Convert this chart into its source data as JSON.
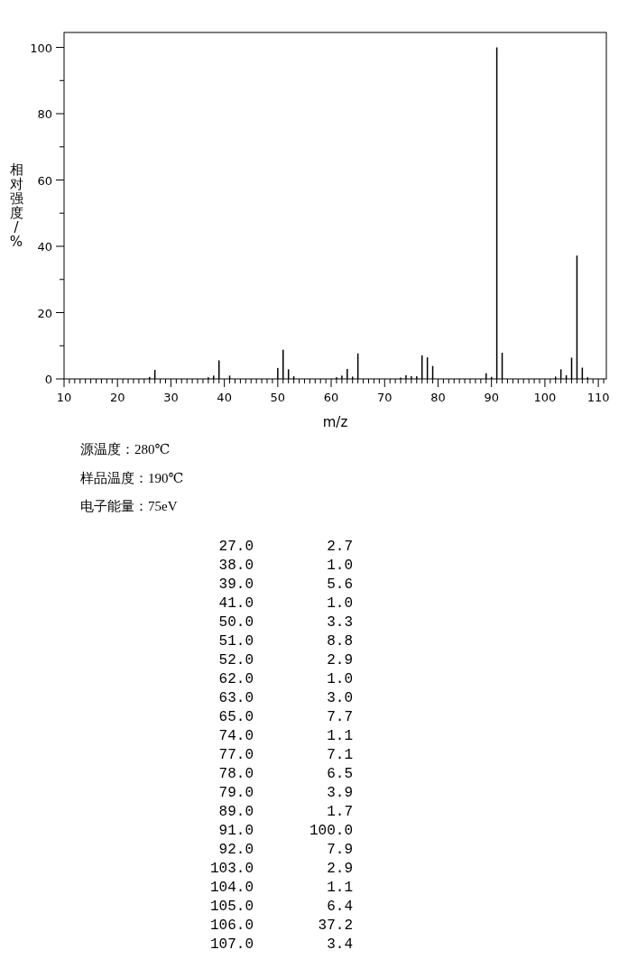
{
  "chart_data": [
    {
      "type": "bar",
      "xlabel": "m/z",
      "ylabel": "相对强度/%",
      "x": [
        26,
        27,
        37,
        38,
        39,
        41,
        50,
        51,
        52,
        53,
        61,
        62,
        63,
        64,
        65,
        73,
        74,
        75,
        76,
        77,
        78,
        79,
        89,
        90,
        91,
        92,
        102,
        103,
        104,
        105,
        106,
        107,
        108
      ],
      "values": [
        0.6,
        2.7,
        0.5,
        1.0,
        5.6,
        1.0,
        3.3,
        8.8,
        2.9,
        0.8,
        0.5,
        1.0,
        3.0,
        0.7,
        7.7,
        0.4,
        1.1,
        0.8,
        0.8,
        7.1,
        6.5,
        3.9,
        1.7,
        0.6,
        100.0,
        7.9,
        0.7,
        2.9,
        1.1,
        6.4,
        37.2,
        3.4,
        0.5
      ],
      "color": "#000000",
      "xlim": [
        10,
        111.5
      ],
      "ylim": [
        0,
        104.5
      ],
      "yticks": [
        0,
        {
          "value": 10,
          "label": null
        },
        20,
        {
          "value": 30,
          "label": null
        },
        40,
        {
          "value": 50,
          "label": null
        },
        60,
        {
          "value": 70,
          "label": null
        },
        80,
        {
          "value": 90,
          "label": null
        },
        100
      ],
      "xticks": [
        10,
        {
          "value": 11,
          "label": null
        },
        {
          "value": 12,
          "label": null
        },
        {
          "value": 13,
          "label": null
        },
        {
          "value": 14,
          "label": null
        },
        {
          "value": 15,
          "label": null
        },
        {
          "value": 16,
          "label": null
        },
        {
          "value": 17,
          "label": null
        },
        {
          "value": 18,
          "label": null
        },
        {
          "value": 19,
          "label": null
        },
        20,
        {
          "value": 21,
          "label": null
        },
        {
          "value": 22,
          "label": null
        },
        {
          "value": 23,
          "label": null
        },
        {
          "value": 24,
          "label": null
        },
        {
          "value": 25,
          "label": null
        },
        {
          "value": 26,
          "label": null
        },
        {
          "value": 27,
          "label": null
        },
        {
          "value": 28,
          "label": null
        },
        {
          "value": 29,
          "label": null
        },
        30,
        {
          "value": 31,
          "label": null
        },
        {
          "value": 32,
          "label": null
        },
        {
          "value": 33,
          "label": null
        },
        {
          "value": 34,
          "label": null
        },
        {
          "value": 35,
          "label": null
        },
        {
          "value": 36,
          "label": null
        },
        {
          "value": 37,
          "label": null
        },
        {
          "value": 38,
          "label": null
        },
        {
          "value": 39,
          "label": null
        },
        40,
        {
          "value": 41,
          "label": null
        },
        {
          "value": 42,
          "label": null
        },
        {
          "value": 43,
          "label": null
        },
        {
          "value": 44,
          "label": null
        },
        {
          "value": 45,
          "label": null
        },
        {
          "value": 46,
          "label": null
        },
        {
          "value": 47,
          "label": null
        },
        {
          "value": 48,
          "label": null
        },
        {
          "value": 49,
          "label": null
        },
        50,
        {
          "value": 51,
          "label": null
        },
        {
          "value": 52,
          "label": null
        },
        {
          "value": 53,
          "label": null
        },
        {
          "value": 54,
          "label": null
        },
        {
          "value": 55,
          "label": null
        },
        {
          "value": 56,
          "label": null
        },
        {
          "value": 57,
          "label": null
        },
        {
          "value": 58,
          "label": null
        },
        {
          "value": 59,
          "label": null
        },
        60,
        {
          "value": 61,
          "label": null
        },
        {
          "value": 62,
          "label": null
        },
        {
          "value": 63,
          "label": null
        },
        {
          "value": 64,
          "label": null
        },
        {
          "value": 65,
          "label": null
        },
        {
          "value": 66,
          "label": null
        },
        {
          "value": 67,
          "label": null
        },
        {
          "value": 68,
          "label": null
        },
        {
          "value": 69,
          "label": null
        },
        70,
        {
          "value": 71,
          "label": null
        },
        {
          "value": 72,
          "label": null
        },
        {
          "value": 73,
          "label": null
        },
        {
          "value": 74,
          "label": null
        },
        {
          "value": 75,
          "label": null
        },
        {
          "value": 76,
          "label": null
        },
        {
          "value": 77,
          "label": null
        },
        {
          "value": 78,
          "label": null
        },
        {
          "value": 79,
          "label": null
        },
        80,
        {
          "value": 81,
          "label": null
        },
        {
          "value": 82,
          "label": null
        },
        {
          "value": 83,
          "label": null
        },
        {
          "value": 84,
          "label": null
        },
        {
          "value": 85,
          "label": null
        },
        {
          "value": 86,
          "label": null
        },
        {
          "value": 87,
          "label": null
        },
        {
          "value": 88,
          "label": null
        },
        {
          "value": 89,
          "label": null
        },
        90,
        {
          "value": 91,
          "label": null
        },
        {
          "value": 92,
          "label": null
        },
        {
          "value": 93,
          "label": null
        },
        {
          "value": 94,
          "label": null
        },
        {
          "value": 95,
          "label": null
        },
        {
          "value": 96,
          "label": null
        },
        {
          "value": 97,
          "label": null
        },
        {
          "value": 98,
          "label": null
        },
        {
          "value": 99,
          "label": null
        },
        100,
        {
          "value": 101,
          "label": null
        },
        {
          "value": 102,
          "label": null
        },
        {
          "value": 103,
          "label": null
        },
        {
          "value": 104,
          "label": null
        },
        {
          "value": 105,
          "label": null
        },
        {
          "value": 106,
          "label": null
        },
        {
          "value": 107,
          "label": null
        },
        {
          "value": 108,
          "label": null
        },
        {
          "value": 109,
          "label": null
        },
        110,
        {
          "value": 111,
          "label": null
        }
      ],
      "annotations": [
        "源温度：280℃",
        "样品温度：190℃",
        "电子能量：75eV"
      ]
    },
    {
      "type": "other",
      "annotations": [
        "27.0",
        "2.7",
        "38.0",
        "1.0",
        "39.0",
        "5.6",
        "41.0",
        "1.0",
        "50.0",
        "3.3",
        "51.0",
        "8.8",
        "52.0",
        "2.9",
        "62.0",
        "1.0",
        "63.0",
        "3.0",
        "65.0",
        "7.7",
        "74.0",
        "1.1",
        "77.0",
        "7.1",
        "78.0",
        "6.5",
        "79.0",
        "3.9",
        "89.0",
        "1.7",
        "91.0",
        "100.0",
        "92.0",
        "7.9",
        "103.0",
        "2.9",
        "104.0",
        "1.1",
        "105.0",
        "6.4",
        "106.0",
        "37.2",
        "107.0",
        "3.4"
      ]
    }
  ]
}
